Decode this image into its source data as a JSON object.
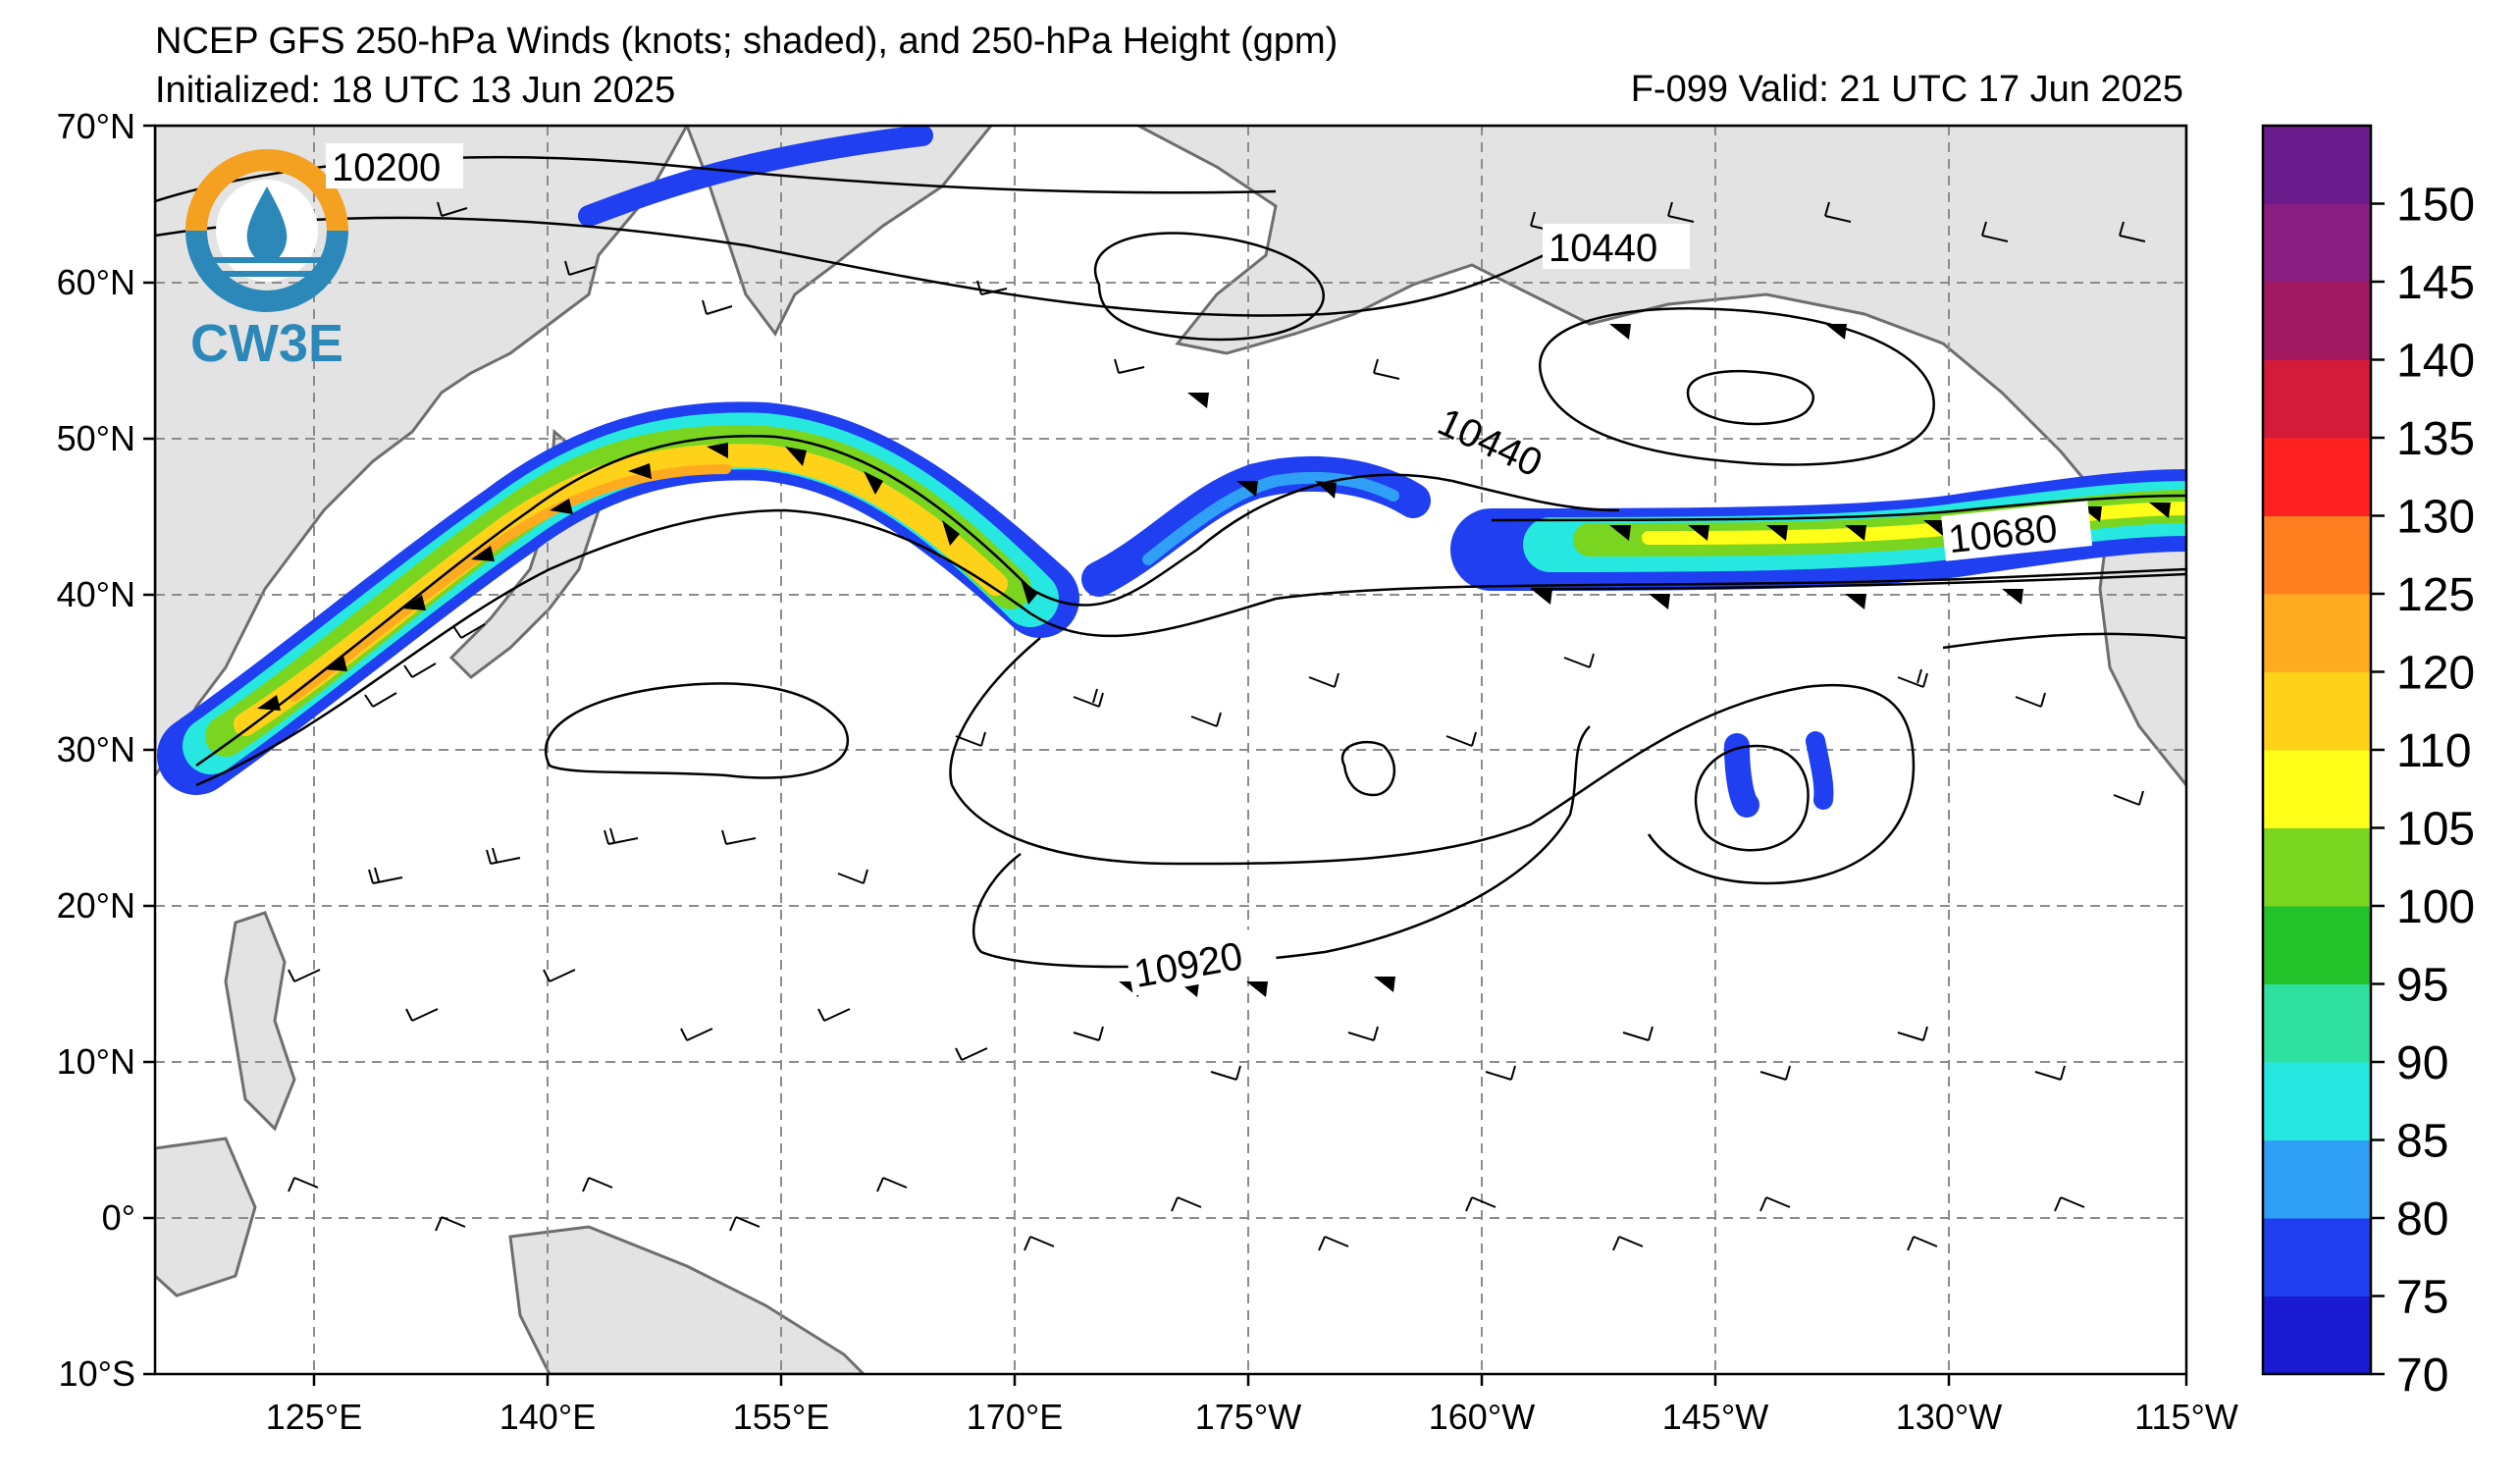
{
  "title": {
    "line1": "NCEP GFS 250-hPa Winds (knots; shaded), and 250-hPa Height (gpm)",
    "line2": "Initialized: 18 UTC 13 Jun 2025",
    "valid": "F-099  Valid: 21 UTC 17 Jun 2025"
  },
  "logo": {
    "text": "CW3E"
  },
  "axes": {
    "lat_labels": [
      "70°N",
      "60°N",
      "50°N",
      "40°N",
      "30°N",
      "20°N",
      "10°N",
      "0°",
      "10°S"
    ],
    "lon_labels": [
      "125°E",
      "140°E",
      "155°E",
      "170°E",
      "175°W",
      "160°W",
      "145°W",
      "130°W",
      "115°W"
    ]
  },
  "contour_labels": [
    "10200",
    "10440",
    "10440",
    "10680",
    "10920"
  ],
  "colorbar": {
    "labels": [
      "70",
      "75",
      "80",
      "85",
      "90",
      "95",
      "100",
      "105",
      "110",
      "120",
      "125",
      "130",
      "135",
      "140",
      "145",
      "150"
    ],
    "colors": [
      "#1a1ad2",
      "#1f3ff0",
      "#2fa0f5",
      "#27e8e0",
      "#2fe0a0",
      "#22c22a",
      "#7ad520",
      "#ffff1a",
      "#ffd21a",
      "#ffab1f",
      "#ff7f20",
      "#ff2020",
      "#d41c3a",
      "#a0185f",
      "#8a1d80",
      "#6b1d8e"
    ]
  },
  "colors": {
    "land": "#e3e3e3",
    "coast": "#6e6e6e",
    "grid": "#8c8c8c",
    "contour": "#000000"
  }
}
